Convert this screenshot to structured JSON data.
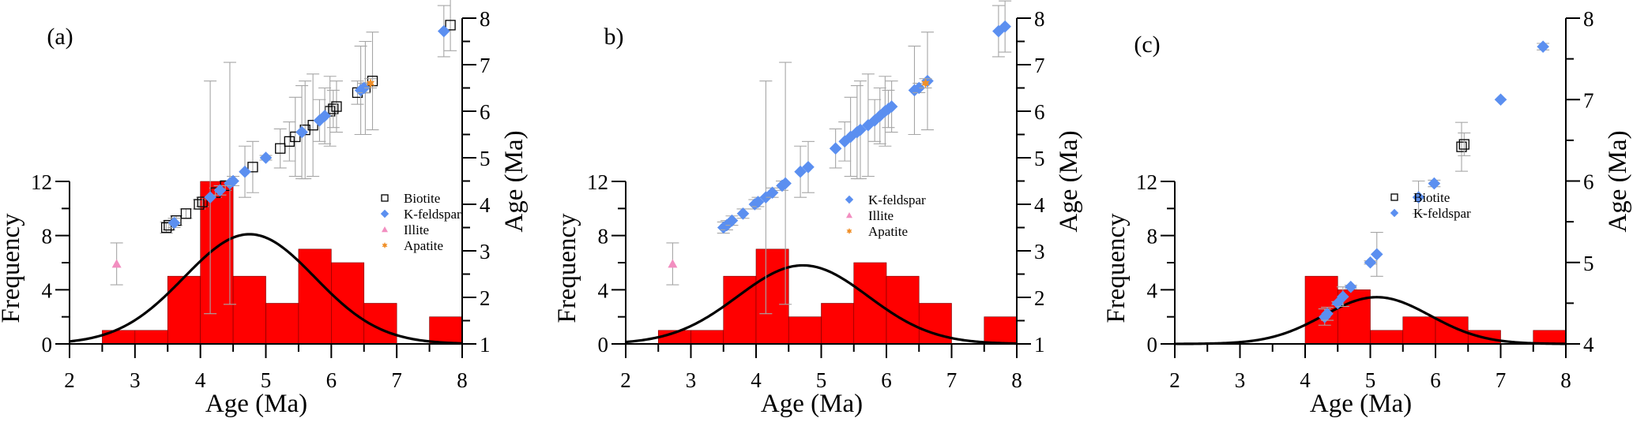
{
  "figure": {
    "colors": {
      "bar_fill": "#ff0000",
      "bar_edge": "#7a0000",
      "curve": "#000000",
      "axis": "#000000",
      "error_bar": "#a6a6a6",
      "biotite": "#000000",
      "kfeldspar": "#5b8ff0",
      "illite": "#f28ec0",
      "apatite": "#f0902a"
    }
  },
  "chart_data": [
    {
      "type": "bar",
      "panel_label": "(a)",
      "title": "",
      "xlabel": "Age (Ma)",
      "ylabel": "Frequency",
      "y2label": "Age (Ma)",
      "xlim": [
        2,
        8
      ],
      "ylim": [
        0,
        12
      ],
      "y2lim": [
        1,
        8
      ],
      "xticks": [
        "2",
        "3",
        "4",
        "5",
        "6",
        "7",
        "8"
      ],
      "yticks": [
        "0",
        "4",
        "8",
        "12"
      ],
      "y2ticks": [
        "1",
        "2",
        "3",
        "4",
        "5",
        "6",
        "7",
        "8"
      ],
      "histogram": {
        "bin_edges": [
          2.5,
          3.0,
          3.5,
          4.0,
          4.5,
          5.0,
          5.5,
          6.0,
          6.5,
          7.0,
          7.5,
          8.0
        ],
        "counts": [
          1,
          1,
          5,
          12,
          5,
          3,
          7,
          6,
          3,
          0,
          2
        ]
      },
      "fit_curve": {
        "type": "normal",
        "mean": 4.75,
        "sd": 1.0,
        "peak": 8.1
      },
      "legend": [
        "Biotite",
        "K-feldspar",
        "Illite",
        "Apatite"
      ],
      "legend_position": "center-right",
      "series": [
        {
          "name": "Biotite",
          "marker": "square-open",
          "points": [
            {
              "x": 3.48,
              "y": 3.5,
              "err": 0.12
            },
            {
              "x": 3.52,
              "y": 3.55,
              "err": 0.1
            },
            {
              "x": 3.63,
              "y": 3.65,
              "err": 0.1
            },
            {
              "x": 3.78,
              "y": 3.8,
              "err": 0.1
            },
            {
              "x": 3.98,
              "y": 4.0,
              "err": 0.1
            },
            {
              "x": 4.03,
              "y": 4.05,
              "err": 0.1
            },
            {
              "x": 4.23,
              "y": 4.25,
              "err": 0.1
            },
            {
              "x": 4.38,
              "y": 4.4,
              "err": 0.1
            },
            {
              "x": 4.8,
              "y": 4.8,
              "err": 0.55
            },
            {
              "x": 5.22,
              "y": 5.2,
              "err": 0.42
            },
            {
              "x": 5.36,
              "y": 5.35,
              "err": 0.42
            },
            {
              "x": 5.45,
              "y": 5.45,
              "err": 0.85
            },
            {
              "x": 5.6,
              "y": 5.6,
              "err": 1.05
            },
            {
              "x": 5.72,
              "y": 5.7,
              "err": 1.1
            },
            {
              "x": 5.98,
              "y": 6.0,
              "err": 0.75
            },
            {
              "x": 6.03,
              "y": 6.05,
              "err": 0.4
            },
            {
              "x": 6.08,
              "y": 6.1,
              "err": 0.55
            },
            {
              "x": 6.4,
              "y": 6.4,
              "err": 0.25
            },
            {
              "x": 6.52,
              "y": 6.5,
              "err": 1.0
            },
            {
              "x": 6.63,
              "y": 6.65,
              "err": 1.05
            },
            {
              "x": 7.82,
              "y": 7.85,
              "err": 0.55
            }
          ]
        },
        {
          "name": "K-feldspar",
          "marker": "diamond",
          "points": [
            {
              "x": 3.6,
              "y": 3.6,
              "err": 0.1
            },
            {
              "x": 4.15,
              "y": 4.15,
              "err": 2.5
            },
            {
              "x": 4.3,
              "y": 4.3,
              "err": 0.1
            },
            {
              "x": 4.45,
              "y": 4.45,
              "err": 2.6
            },
            {
              "x": 4.5,
              "y": 4.5,
              "err": 0.1
            },
            {
              "x": 4.68,
              "y": 4.7,
              "err": 0.55
            },
            {
              "x": 5.0,
              "y": 5.0,
              "err": 0.05
            },
            {
              "x": 5.55,
              "y": 5.55,
              "err": 1.0
            },
            {
              "x": 5.82,
              "y": 5.8,
              "err": 0.45
            },
            {
              "x": 5.9,
              "y": 5.9,
              "err": 0.6
            },
            {
              "x": 6.45,
              "y": 6.45,
              "err": 0.95
            },
            {
              "x": 6.5,
              "y": 6.5,
              "err": 0.1
            },
            {
              "x": 7.72,
              "y": 7.72,
              "err": 0.55
            }
          ]
        },
        {
          "name": "Illite",
          "marker": "triangle",
          "points": [
            {
              "x": 2.72,
              "y": 2.72,
              "err": 0.45
            }
          ]
        },
        {
          "name": "Apatite",
          "marker": "star",
          "points": [
            {
              "x": 6.6,
              "y": 6.6,
              "err": 0.1
            }
          ]
        }
      ]
    },
    {
      "type": "bar",
      "panel_label": "b)",
      "title": "",
      "xlabel": "Age (Ma)",
      "ylabel": "Frequency",
      "y2label": "Age (Ma)",
      "xlim": [
        2,
        8
      ],
      "ylim": [
        0,
        12
      ],
      "y2lim": [
        1,
        8
      ],
      "xticks": [
        "2",
        "3",
        "4",
        "5",
        "6",
        "7",
        "8"
      ],
      "yticks": [
        "0",
        "4",
        "8",
        "12"
      ],
      "y2ticks": [
        "1",
        "2",
        "3",
        "4",
        "5",
        "6",
        "7",
        "8"
      ],
      "histogram": {
        "bin_edges": [
          2.5,
          3.0,
          3.5,
          4.0,
          4.5,
          5.0,
          5.5,
          6.0,
          6.5,
          7.0,
          7.5,
          8.0
        ],
        "counts": [
          1,
          1,
          5,
          7,
          2,
          3,
          6,
          5,
          3,
          0,
          2
        ]
      },
      "fit_curve": {
        "type": "normal",
        "mean": 4.72,
        "sd": 1.0,
        "peak": 5.8
      },
      "legend": [
        "K-feldspar",
        "Illite",
        "Apatite"
      ],
      "legend_position": "center-right",
      "series": [
        {
          "name": "K-feldspar",
          "marker": "diamond",
          "points": [
            {
              "x": 3.5,
              "y": 3.5,
              "err": 0.12
            },
            {
              "x": 3.55,
              "y": 3.55,
              "err": 0.1
            },
            {
              "x": 3.63,
              "y": 3.65,
              "err": 0.1
            },
            {
              "x": 3.8,
              "y": 3.8,
              "err": 0.1
            },
            {
              "x": 3.98,
              "y": 4.0,
              "err": 0.1
            },
            {
              "x": 4.03,
              "y": 4.05,
              "err": 0.1
            },
            {
              "x": 4.15,
              "y": 4.15,
              "err": 2.5
            },
            {
              "x": 4.25,
              "y": 4.25,
              "err": 0.1
            },
            {
              "x": 4.4,
              "y": 4.4,
              "err": 0.1
            },
            {
              "x": 4.45,
              "y": 4.45,
              "err": 2.6
            },
            {
              "x": 4.68,
              "y": 4.7,
              "err": 0.55
            },
            {
              "x": 4.8,
              "y": 4.8,
              "err": 0.55
            },
            {
              "x": 5.22,
              "y": 5.2,
              "err": 0.42
            },
            {
              "x": 5.36,
              "y": 5.35,
              "err": 0.42
            },
            {
              "x": 5.45,
              "y": 5.45,
              "err": 0.85
            },
            {
              "x": 5.55,
              "y": 5.55,
              "err": 1.0
            },
            {
              "x": 5.6,
              "y": 5.6,
              "err": 1.05
            },
            {
              "x": 5.72,
              "y": 5.7,
              "err": 1.1
            },
            {
              "x": 5.82,
              "y": 5.8,
              "err": 0.45
            },
            {
              "x": 5.9,
              "y": 5.9,
              "err": 0.6
            },
            {
              "x": 5.98,
              "y": 6.0,
              "err": 0.75
            },
            {
              "x": 6.03,
              "y": 6.05,
              "err": 0.4
            },
            {
              "x": 6.08,
              "y": 6.1,
              "err": 0.55
            },
            {
              "x": 6.43,
              "y": 6.45,
              "err": 0.95
            },
            {
              "x": 6.5,
              "y": 6.5,
              "err": 0.1
            },
            {
              "x": 6.63,
              "y": 6.65,
              "err": 1.05
            },
            {
              "x": 7.72,
              "y": 7.72,
              "err": 0.55
            },
            {
              "x": 7.82,
              "y": 7.82,
              "err": 0.55
            }
          ]
        },
        {
          "name": "Illite",
          "marker": "triangle",
          "points": [
            {
              "x": 2.72,
              "y": 2.72,
              "err": 0.45
            }
          ]
        },
        {
          "name": "Apatite",
          "marker": "star",
          "points": [
            {
              "x": 6.6,
              "y": 6.6,
              "err": 0.1
            }
          ]
        }
      ]
    },
    {
      "type": "bar",
      "panel_label": "(c)",
      "title": "",
      "xlabel": "Age (Ma)",
      "ylabel": "Frequency",
      "y2label": "Age (Ma)",
      "xlim": [
        2,
        8
      ],
      "ylim": [
        0,
        12
      ],
      "y2lim": [
        4,
        8
      ],
      "xticks": [
        "2",
        "3",
        "4",
        "5",
        "6",
        "7",
        "8"
      ],
      "yticks": [
        "0",
        "4",
        "8",
        "12"
      ],
      "y2ticks": [
        "4",
        "5",
        "6",
        "7",
        "8"
      ],
      "histogram": {
        "bin_edges": [
          4.0,
          4.5,
          5.0,
          5.5,
          6.0,
          6.5,
          7.0,
          7.5,
          8.0
        ],
        "counts": [
          5,
          4,
          1,
          2,
          2,
          1,
          0,
          1
        ]
      },
      "fit_curve": {
        "type": "normal",
        "mean": 5.1,
        "sd": 0.82,
        "peak": 3.45
      },
      "legend": [
        "Biotite",
        "K-feldspar"
      ],
      "legend_position": "center-right",
      "series": [
        {
          "name": "Biotite",
          "marker": "square-open",
          "points": [
            {
              "x": 6.4,
              "y": 6.42,
              "err": 0.3
            },
            {
              "x": 6.44,
              "y": 6.45,
              "err": 0.14
            }
          ]
        },
        {
          "name": "K-feldspar",
          "marker": "diamond",
          "points": [
            {
              "x": 4.3,
              "y": 4.33,
              "err": 0.1
            },
            {
              "x": 4.34,
              "y": 4.37,
              "err": 0.08
            },
            {
              "x": 4.5,
              "y": 4.5,
              "err": 0.02
            },
            {
              "x": 4.58,
              "y": 4.58,
              "err": 0.12
            },
            {
              "x": 4.7,
              "y": 4.7,
              "err": 0.02
            },
            {
              "x": 5.0,
              "y": 5.0,
              "err": 0.02
            },
            {
              "x": 5.1,
              "y": 5.1,
              "err": 0.27
            },
            {
              "x": 5.74,
              "y": 5.8,
              "err": 0.2
            },
            {
              "x": 5.98,
              "y": 5.97,
              "err": 0.04
            },
            {
              "x": 7.0,
              "y": 7.0,
              "err": 0.0
            },
            {
              "x": 7.65,
              "y": 7.65,
              "err": 0.04
            }
          ]
        }
      ]
    }
  ]
}
